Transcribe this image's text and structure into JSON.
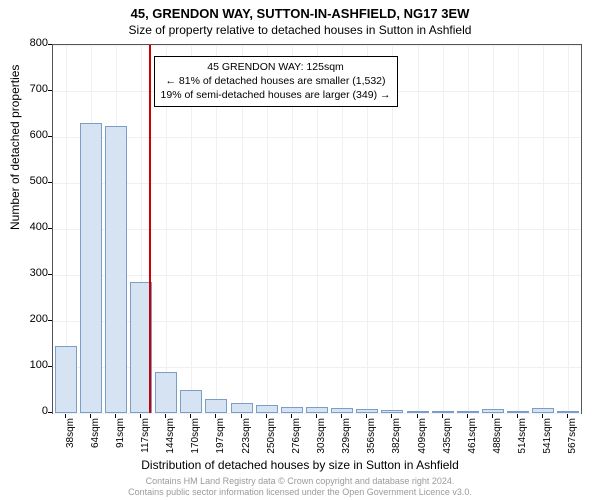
{
  "header": {
    "address": "45, GRENDON WAY, SUTTON-IN-ASHFIELD, NG17 3EW",
    "subtitle": "Size of property relative to detached houses in Sutton in Ashfield"
  },
  "annotation": {
    "line1": "45 GRENDON WAY: 125sqm",
    "line2": "← 81% of detached houses are smaller (1,532)",
    "line3": "19% of semi-detached houses are larger (349) →"
  },
  "yaxis": {
    "label": "Number of detached properties",
    "ticks": [
      0,
      100,
      200,
      300,
      400,
      500,
      600,
      700,
      800
    ],
    "max": 800
  },
  "xaxis": {
    "label": "Distribution of detached houses by size in Sutton in Ashfield",
    "ticks": [
      "38sqm",
      "64sqm",
      "91sqm",
      "117sqm",
      "144sqm",
      "170sqm",
      "197sqm",
      "223sqm",
      "250sqm",
      "276sqm",
      "303sqm",
      "329sqm",
      "356sqm",
      "382sqm",
      "409sqm",
      "435sqm",
      "461sqm",
      "488sqm",
      "514sqm",
      "541sqm",
      "567sqm"
    ]
  },
  "chart": {
    "type": "histogram",
    "bar_fill": "#d6e3f3",
    "bar_stroke": "#7a9ec8",
    "grid_color": "#eef0f4",
    "marker_color": "#cc0000",
    "background": "#ffffff",
    "title_fontsize": 13,
    "label_fontsize": 12,
    "tick_fontsize": 11,
    "values": [
      145,
      630,
      625,
      285,
      90,
      50,
      30,
      22,
      18,
      14,
      12,
      10,
      8,
      6,
      5,
      4,
      4,
      8,
      3,
      10,
      3
    ],
    "marker_category_index": 3
  },
  "footer": {
    "line1": "Contains HM Land Registry data © Crown copyright and database right 2024.",
    "line2": "Contains public sector information licensed under the Open Government Licence v3.0."
  }
}
